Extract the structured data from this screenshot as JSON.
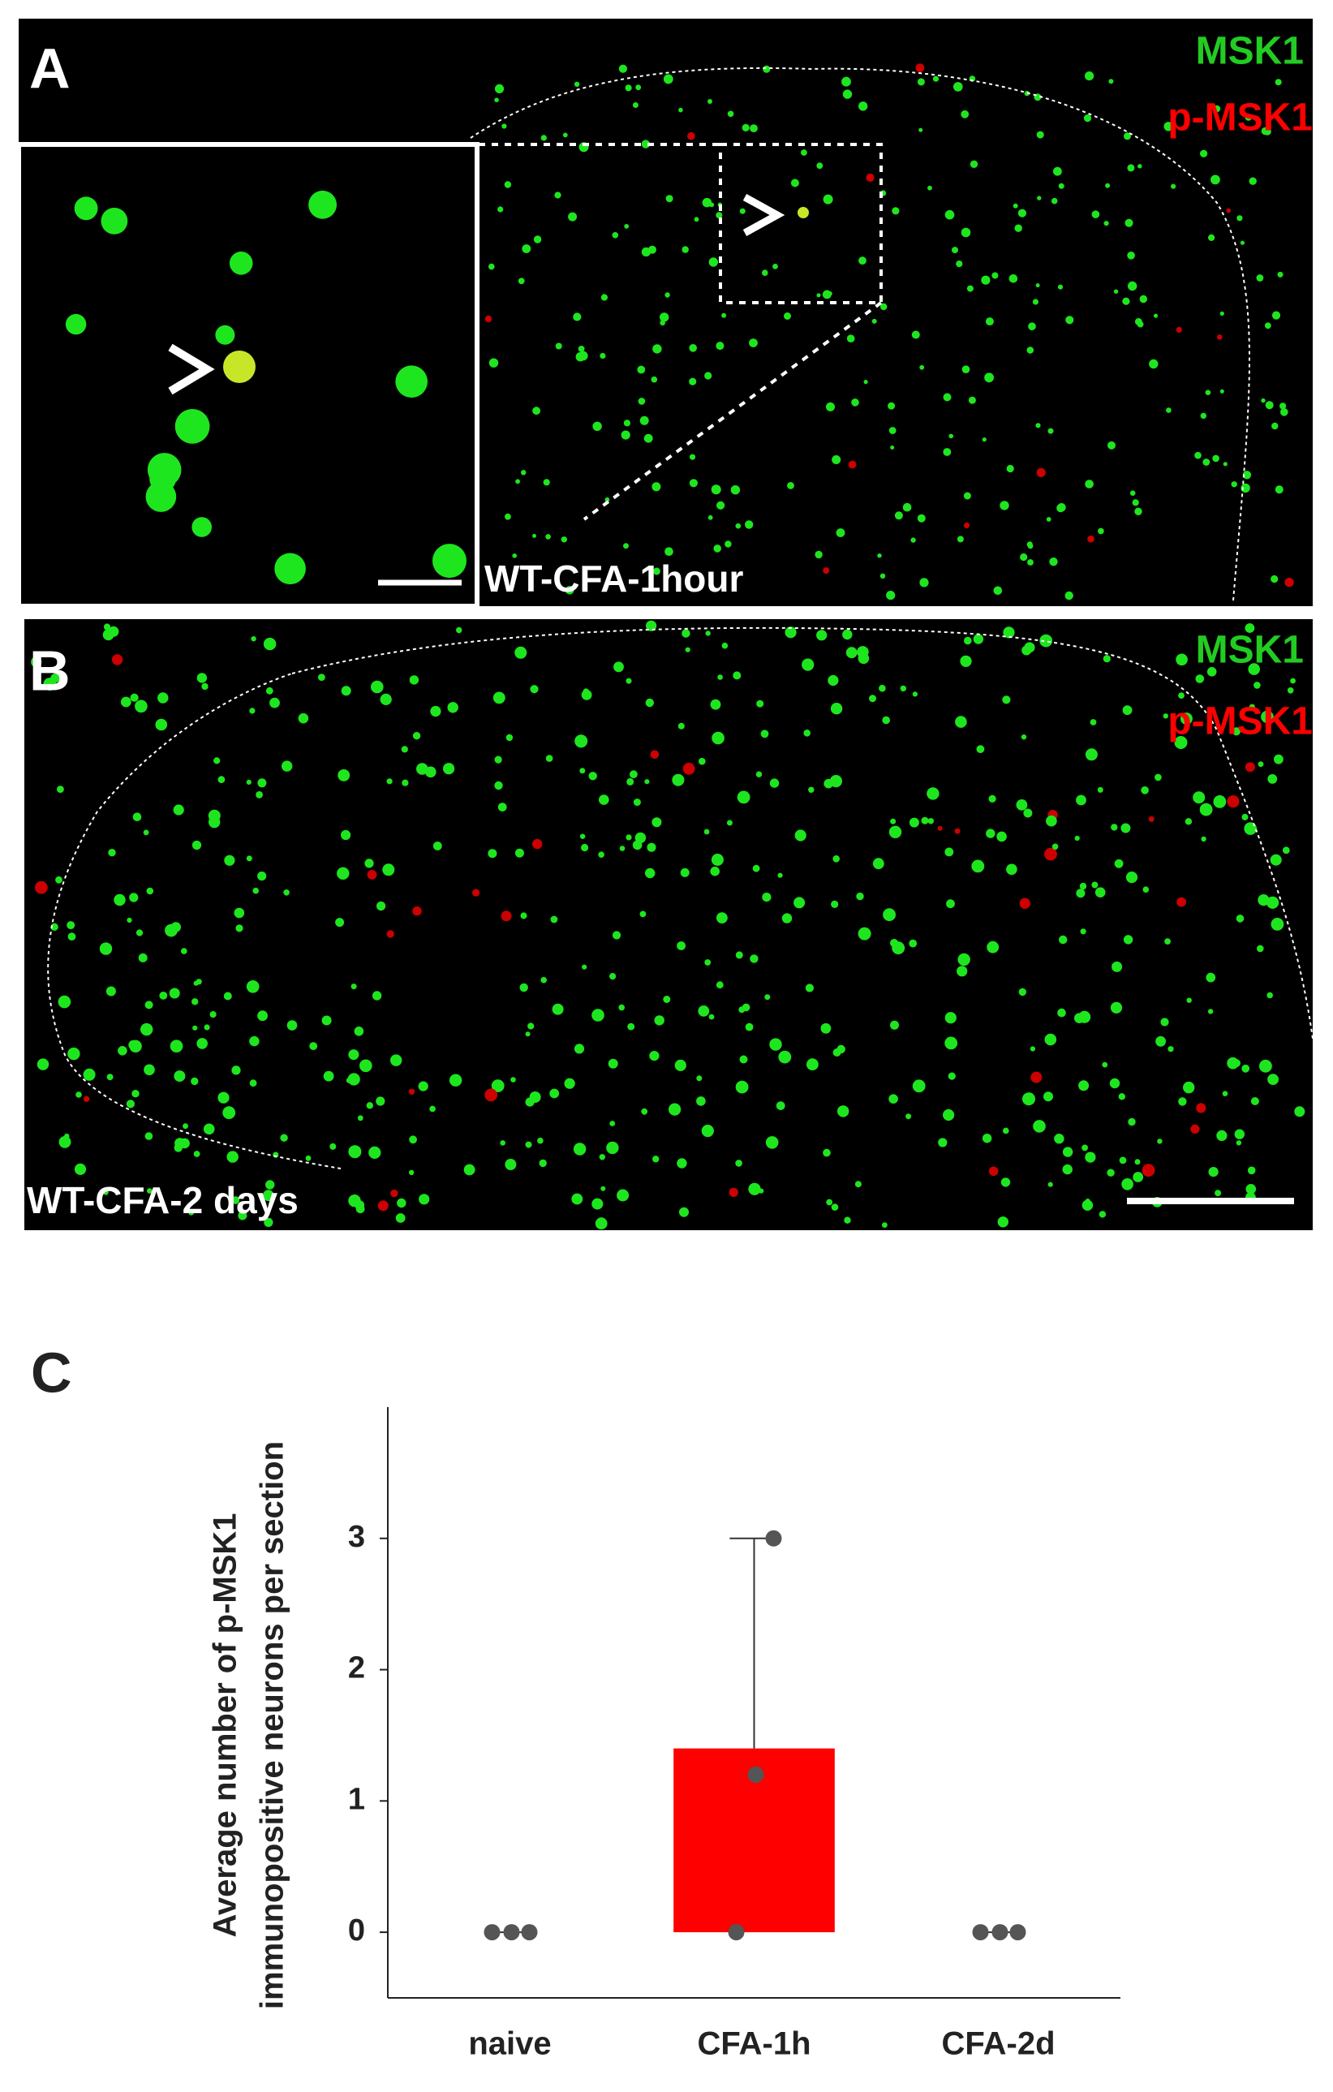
{
  "panels": [
    {
      "label": "A",
      "channels": [
        "MSK1",
        "p-MSK1"
      ],
      "caption": "WT-CFA-1hour"
    },
    {
      "label": "B",
      "channels": [
        "MSK1",
        "p-MSK1"
      ],
      "caption": "WT-CFA-2 days"
    }
  ],
  "chart_data": {
    "type": "bar",
    "panel_label": "C",
    "y_label": [
      "Average number of p-MSK1",
      "immunopositive neurons per section"
    ],
    "categories": [
      "naive",
      "CFA-1h",
      "CFA-2d"
    ],
    "values": [
      0,
      1.4,
      0
    ],
    "errors": [
      0,
      1.6,
      0
    ],
    "points": [
      [
        0,
        0,
        0
      ],
      [
        0,
        1.2,
        3
      ],
      [
        0,
        0,
        0
      ]
    ],
    "colors": [
      "#22cc22",
      "#ff0000",
      "#ffb030"
    ],
    "ylim": [
      -0.5,
      4
    ],
    "yticks": [
      0,
      1,
      2,
      3
    ]
  }
}
